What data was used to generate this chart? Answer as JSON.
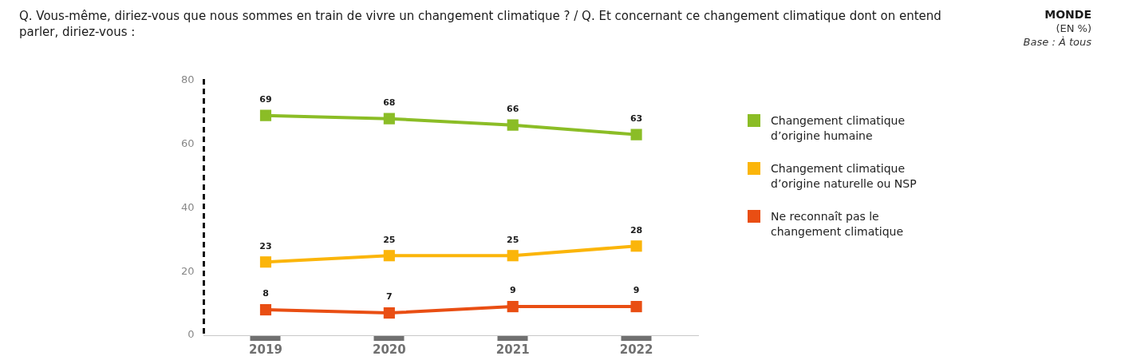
{
  "chart_data": {
    "type": "line",
    "title": "Q. Vous-même, diriez-vous que nous sommes en train de vivre un changement climatique ? / Q. Et concernant ce changement climatique dont on entend parler, diriez-vous :",
    "subtitle": "MONDE",
    "annotations": [
      "(EN %)",
      "Base : À tous"
    ],
    "categories": [
      "2019",
      "2020",
      "2021",
      "2022"
    ],
    "series": [
      {
        "name": "Changement climatique d’origine humaine",
        "color": "#8bbd26",
        "values": [
          69,
          68,
          66,
          63
        ]
      },
      {
        "name": "Changement climatique d’origine naturelle ou NSP",
        "color": "#fbb50a",
        "values": [
          23,
          25,
          25,
          28
        ]
      },
      {
        "name": "Ne reconnaît pas le changement climatique",
        "color": "#e94e13",
        "values": [
          8,
          7,
          9,
          9
        ]
      }
    ],
    "ylim": [
      0,
      80
    ],
    "yticks": [
      0,
      20,
      40,
      60,
      80
    ],
    "grid": false,
    "legend": "right",
    "marker": "square",
    "line_style": "solid",
    "data_labels": true
  }
}
